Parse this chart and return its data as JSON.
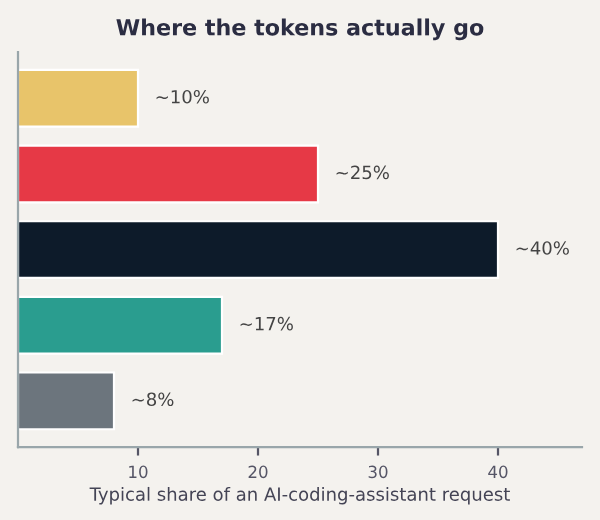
{
  "chart_data": {
    "type": "bar",
    "orientation": "horizontal",
    "title": "Where the tokens actually go",
    "xlabel": "Typical share of an AI-coding-assistant request",
    "categories": [
      null,
      null,
      null,
      null,
      null
    ],
    "values": [
      10,
      25,
      40,
      17,
      8
    ],
    "colors": [
      "#e8c46a",
      "#e63946",
      "#0d1b2a",
      "#2a9d8f",
      "#6c757d"
    ],
    "value_labels": [
      "~10%",
      "~25%",
      "~40%",
      "~17%",
      "~8%"
    ],
    "xlim": [
      0,
      47
    ],
    "xticks": [
      10,
      20,
      30,
      40
    ],
    "grid": false
  }
}
